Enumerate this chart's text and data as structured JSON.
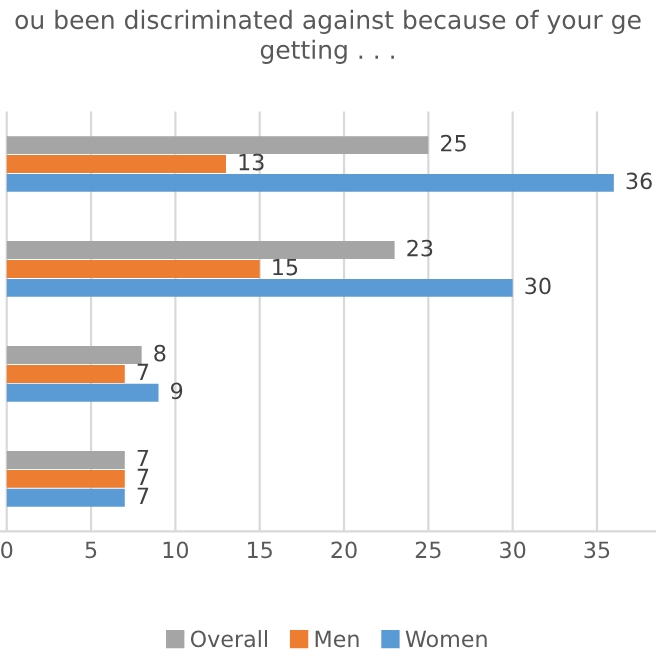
{
  "chart_data": {
    "type": "bar",
    "orientation": "horizontal",
    "title": "ou been discriminated against because of your ge\ngetting . . .",
    "categories": [
      null,
      null,
      null,
      null
    ],
    "series": [
      {
        "name": "Overall",
        "color": "#a5a5a5",
        "values": [
          25,
          23,
          8,
          7
        ]
      },
      {
        "name": "Men",
        "color": "#ed7d31",
        "values": [
          13,
          15,
          7,
          7
        ]
      },
      {
        "name": "Women",
        "color": "#5b9bd5",
        "values": [
          36,
          30,
          9,
          7
        ]
      }
    ],
    "xlim": [
      -0.4,
      38.5
    ],
    "xticks": [
      0,
      5,
      10,
      15,
      20,
      25,
      30,
      35
    ],
    "grid": "x",
    "legend": "bottom",
    "data_labels": true
  }
}
